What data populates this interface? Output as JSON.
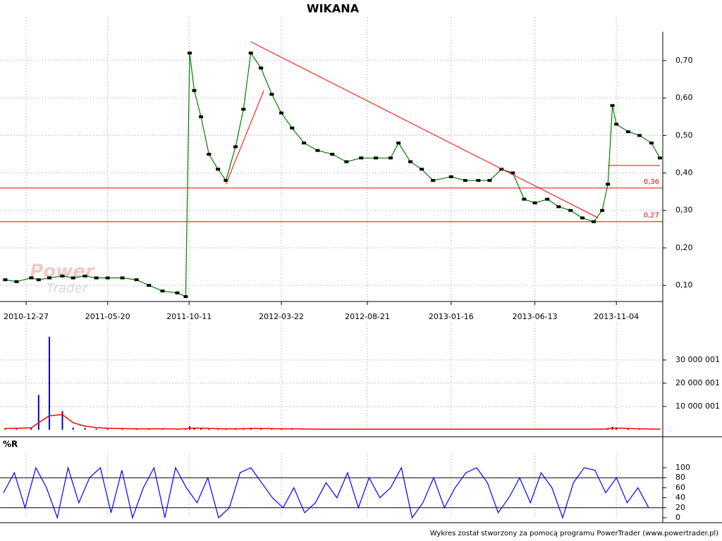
{
  "chart_data": [
    {
      "type": "line",
      "title": "WIKANA",
      "watermark": [
        "Power",
        "Trader"
      ],
      "xlim": [
        "2010-11-17",
        "2014-01-25"
      ],
      "xticks": [
        "2010-12-27",
        "2011-05-20",
        "2011-10-11",
        "2012-03-22",
        "2012-08-21",
        "2013-01-16",
        "2013-06-13",
        "2013-11-04"
      ],
      "ylim": [
        0.057,
        0.777
      ],
      "yticks": [
        {
          "value": 0.1,
          "label": "0,10"
        },
        {
          "value": 0.2,
          "label": "0,20"
        },
        {
          "value": 0.3,
          "label": "0,30"
        },
        {
          "value": 0.4,
          "label": "0,40"
        },
        {
          "value": 0.5,
          "label": "0,50"
        },
        {
          "value": 0.6,
          "label": "0,60"
        },
        {
          "value": 0.7,
          "label": "0,70"
        }
      ],
      "grid": true,
      "x": [
        "2010-11-20",
        "2010-12-10",
        "2011-01-05",
        "2011-01-18",
        "2011-02-06",
        "2011-03-01",
        "2011-03-20",
        "2011-04-10",
        "2011-04-30",
        "2011-05-20",
        "2011-06-15",
        "2011-07-10",
        "2011-08-01",
        "2011-08-25",
        "2011-09-20",
        "2011-10-05",
        "2011-10-12",
        "2011-10-20",
        "2011-11-01",
        "2011-11-15",
        "2011-12-01",
        "2011-12-15",
        "2012-01-01",
        "2012-01-15",
        "2012-01-28",
        "2012-02-15",
        "2012-03-05",
        "2012-03-22",
        "2012-04-10",
        "2012-05-01",
        "2012-05-25",
        "2012-06-20",
        "2012-07-15",
        "2012-08-10",
        "2012-09-05",
        "2012-10-01",
        "2012-10-15",
        "2012-11-05",
        "2012-11-25",
        "2012-12-15",
        "2013-01-16",
        "2013-02-10",
        "2013-03-05",
        "2013-03-25",
        "2013-04-15",
        "2013-05-05",
        "2013-05-25",
        "2013-06-13",
        "2013-07-05",
        "2013-07-25",
        "2013-08-15",
        "2013-09-05",
        "2013-09-25",
        "2013-10-10",
        "2013-10-20",
        "2013-10-28",
        "2013-11-04",
        "2013-11-25",
        "2013-12-15",
        "2014-01-05",
        "2014-01-20"
      ],
      "series": [
        {
          "color": "#008000",
          "values": [
            0.115,
            0.11,
            0.12,
            0.115,
            0.12,
            0.125,
            0.12,
            0.125,
            0.12,
            0.12,
            0.12,
            0.115,
            0.1,
            0.085,
            0.08,
            0.07,
            0.72,
            0.62,
            0.55,
            0.45,
            0.41,
            0.38,
            0.47,
            0.57,
            0.72,
            0.68,
            0.61,
            0.56,
            0.52,
            0.48,
            0.46,
            0.45,
            0.43,
            0.44,
            0.44,
            0.44,
            0.48,
            0.43,
            0.41,
            0.38,
            0.39,
            0.38,
            0.38,
            0.38,
            0.41,
            0.4,
            0.33,
            0.32,
            0.33,
            0.31,
            0.3,
            0.28,
            0.27,
            0.3,
            0.37,
            0.58,
            0.53,
            0.51,
            0.5,
            0.48,
            0.44
          ]
        }
      ],
      "levels": [
        {
          "value": 0.36,
          "label": "0,36"
        },
        {
          "value": 0.27,
          "label": "0,27"
        }
      ],
      "trendlines": [
        {
          "color": "#ff0000",
          "x": [
            "2011-12-15",
            "2012-02-20"
          ],
          "y": [
            0.37,
            0.62
          ]
        },
        {
          "color": "#ff0000",
          "x": [
            "2012-01-28",
            "2013-10-03"
          ],
          "y": [
            0.75,
            0.28
          ]
        },
        {
          "color": "#ff0000",
          "x": [
            "2013-10-20",
            "2014-01-20"
          ],
          "y": [
            0.42,
            0.42
          ]
        }
      ]
    },
    {
      "type": "bar",
      "ylim": [
        0,
        40000000
      ],
      "yticks": [
        {
          "value": 10000001,
          "label": "10 000 001"
        },
        {
          "value": 20000001,
          "label": "20 000 001"
        },
        {
          "value": 30000001,
          "label": "30 000 001"
        }
      ],
      "grid": true,
      "series": [
        {
          "color": "#0000cc",
          "values": [
            600000,
            500000,
            800000,
            15000000,
            40000000,
            8000000,
            900000,
            700000,
            500000,
            400000,
            300000,
            300000,
            400000,
            300000,
            300000,
            500000,
            1500000,
            900000,
            600000,
            500000,
            400000,
            300000,
            500000,
            600000,
            800000,
            500000,
            400000,
            400000,
            300000,
            300000,
            200000,
            200000,
            200000,
            200000,
            200000,
            200000,
            300000,
            200000,
            200000,
            200000,
            200000,
            200000,
            200000,
            200000,
            300000,
            200000,
            200000,
            200000,
            200000,
            200000,
            200000,
            200000,
            200000,
            300000,
            700000,
            1200000,
            900000,
            400000,
            300000,
            200000,
            200000
          ]
        },
        {
          "color": "#ff0000",
          "values": [
            500000,
            600000,
            800000,
            3000000,
            6000000,
            6500000,
            3000000,
            1500000,
            900000,
            600000,
            500000,
            400000,
            400000,
            350000,
            300000,
            350000,
            600000,
            700000,
            650000,
            550000,
            450000,
            400000,
            400000,
            450000,
            550000,
            550000,
            450000,
            400000,
            350000,
            300000,
            250000,
            220000,
            200000,
            200000,
            200000,
            200000,
            220000,
            220000,
            210000,
            200000,
            200000,
            200000,
            200000,
            200000,
            220000,
            210000,
            200000,
            200000,
            200000,
            200000,
            200000,
            200000,
            200000,
            220000,
            350000,
            600000,
            700000,
            550000,
            400000,
            300000,
            250000
          ]
        }
      ]
    },
    {
      "type": "line",
      "title": "%R",
      "ylim": [
        0,
        100
      ],
      "yticks": [
        0,
        20,
        40,
        60,
        80,
        100
      ],
      "series": [
        {
          "color": "#0000ff",
          "values": [
            50,
            90,
            20,
            100,
            60,
            0,
            100,
            30,
            80,
            100,
            10,
            95,
            0,
            60,
            100,
            0,
            100,
            60,
            30,
            80,
            0,
            20,
            90,
            100,
            70,
            40,
            20,
            60,
            10,
            30,
            70,
            40,
            90,
            20,
            80,
            40,
            60,
            100,
            0,
            30,
            80,
            20,
            60,
            90,
            100,
            70,
            10,
            40,
            80,
            30,
            90,
            60,
            0,
            70,
            100,
            95,
            50,
            80,
            30,
            60,
            20
          ]
        }
      ]
    }
  ],
  "footer": "Wykres został stworzony za pomocą programu PowerTrader (www.powertrader.pl)"
}
